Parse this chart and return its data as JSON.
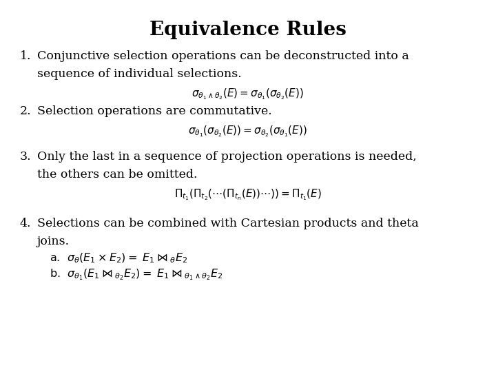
{
  "title": "Equivalence Rules",
  "background_color": "#ffffff",
  "text_color": "#000000",
  "title_fontsize": 20,
  "body_fontsize": 12.5,
  "formula_fontsize": 11,
  "sub_fontsize": 11.5
}
